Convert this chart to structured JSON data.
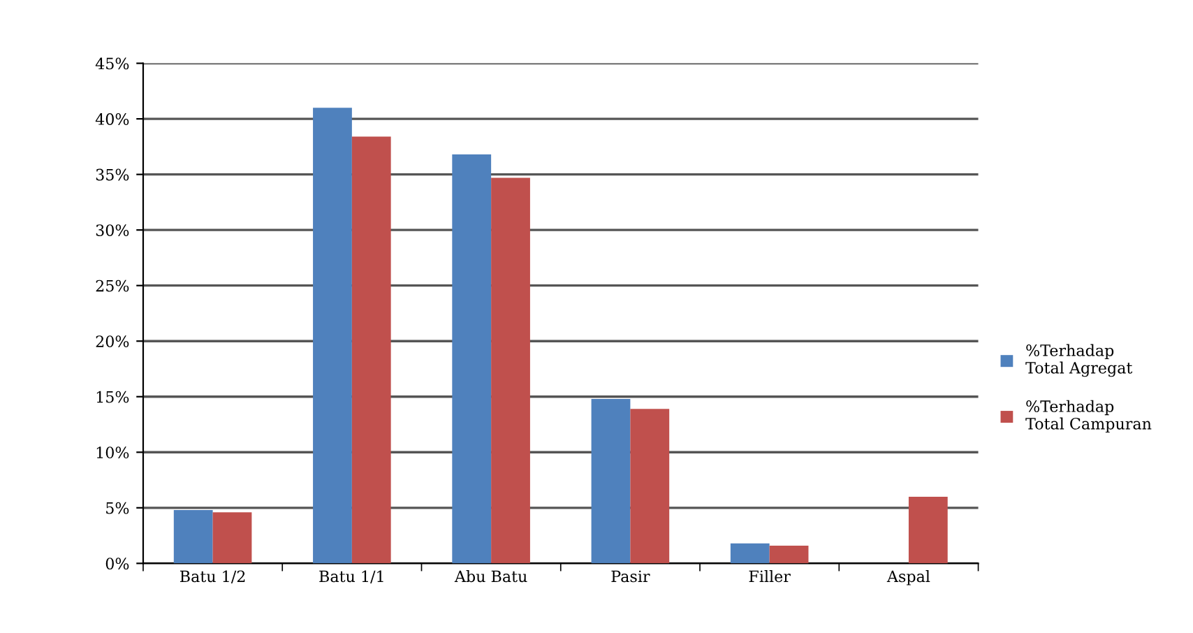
{
  "chart_data": {
    "type": "bar",
    "categories": [
      "Batu 1/2",
      "Batu 1/1",
      "Abu Batu",
      "Pasir",
      "Filler",
      "Aspal"
    ],
    "series": [
      {
        "name": "%Terhadap\nTotal Agregat",
        "color": "#4f81bd",
        "values": [
          4.8,
          41.0,
          36.8,
          14.8,
          1.8,
          null
        ]
      },
      {
        "name": "%Terhadap\nTotal Campuran",
        "color": "#c0504d",
        "values": [
          4.6,
          38.4,
          34.7,
          13.9,
          1.6,
          6.0
        ]
      }
    ],
    "ylim": [
      0,
      45
    ],
    "yticks": [
      {
        "value": 0,
        "label": "0%"
      },
      {
        "value": 5,
        "label": "5%"
      },
      {
        "value": 10,
        "label": "10%"
      },
      {
        "value": 15,
        "label": "15%"
      },
      {
        "value": 20,
        "label": "20%"
      },
      {
        "value": 25,
        "label": "25%"
      },
      {
        "value": 30,
        "label": "30%"
      },
      {
        "value": 35,
        "label": "35%"
      },
      {
        "value": 40,
        "label": "40%"
      },
      {
        "value": 45,
        "label": "45%"
      }
    ],
    "grid": "y",
    "legend": "right"
  }
}
